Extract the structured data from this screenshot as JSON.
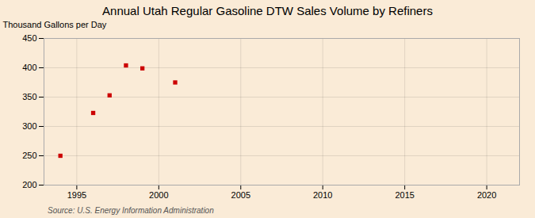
{
  "chart_data": {
    "type": "scatter",
    "title": "Annual Utah Regular Gasoline DTW Sales Volume by Refiners",
    "ylabel": "Thousand Gallons per Day",
    "source": "Source: U.S. Energy Information Administration",
    "x": [
      1994,
      1996,
      1997,
      1998,
      1999,
      2001
    ],
    "values": [
      250,
      323,
      353,
      404,
      399,
      375
    ],
    "xlim": [
      1993,
      2022
    ],
    "ylim": [
      200,
      450
    ],
    "xticks": [
      1995,
      2000,
      2005,
      2010,
      2015,
      2020
    ],
    "yticks": [
      200,
      250,
      300,
      350,
      400,
      450
    ],
    "color": "#cc0000",
    "marker": "square",
    "grid": true
  }
}
